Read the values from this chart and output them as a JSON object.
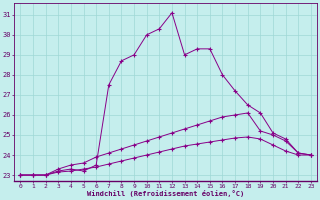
{
  "xlabel": "Windchill (Refroidissement éolien,°C)",
  "ylabel": "",
  "xlim": [
    -0.5,
    23.5
  ],
  "ylim": [
    22.7,
    31.6
  ],
  "yticks": [
    23,
    24,
    25,
    26,
    27,
    28,
    29,
    30,
    31
  ],
  "xticks": [
    0,
    1,
    2,
    3,
    4,
    5,
    6,
    7,
    8,
    9,
    10,
    11,
    12,
    13,
    14,
    15,
    16,
    17,
    18,
    19,
    20,
    21,
    22,
    23
  ],
  "bg_color": "#c5eeed",
  "grid_color": "#9fd8d6",
  "line_color": "#880088",
  "curve1_x": [
    0,
    1,
    2,
    3,
    4,
    5,
    6,
    7,
    8,
    9,
    10,
    11,
    12,
    13,
    14,
    15,
    16,
    17,
    18,
    19,
    20,
    21,
    22,
    23
  ],
  "curve1_y": [
    23.0,
    23.0,
    23.0,
    23.2,
    23.3,
    23.2,
    23.5,
    27.5,
    28.7,
    29.0,
    30.0,
    30.3,
    31.1,
    29.0,
    29.3,
    29.3,
    28.0,
    27.2,
    26.5,
    26.1,
    25.1,
    24.8,
    24.1,
    24.0
  ],
  "curve2_x": [
    0,
    1,
    2,
    3,
    4,
    5,
    6,
    7,
    8,
    9,
    10,
    11,
    12,
    13,
    14,
    15,
    16,
    17,
    18,
    19,
    20,
    21,
    22,
    23
  ],
  "curve2_y": [
    23.0,
    23.0,
    23.0,
    23.3,
    23.5,
    23.6,
    23.9,
    24.1,
    24.3,
    24.5,
    24.7,
    24.9,
    25.1,
    25.3,
    25.5,
    25.7,
    25.9,
    26.0,
    26.1,
    25.2,
    25.0,
    24.7,
    24.1,
    24.0
  ],
  "curve3_x": [
    0,
    1,
    2,
    3,
    4,
    5,
    6,
    7,
    8,
    9,
    10,
    11,
    12,
    13,
    14,
    15,
    16,
    17,
    18,
    19,
    20,
    21,
    22,
    23
  ],
  "curve3_y": [
    23.0,
    23.0,
    23.0,
    23.15,
    23.2,
    23.3,
    23.4,
    23.55,
    23.7,
    23.85,
    24.0,
    24.15,
    24.3,
    24.45,
    24.55,
    24.65,
    24.75,
    24.85,
    24.9,
    24.8,
    24.5,
    24.2,
    24.0,
    24.0
  ]
}
